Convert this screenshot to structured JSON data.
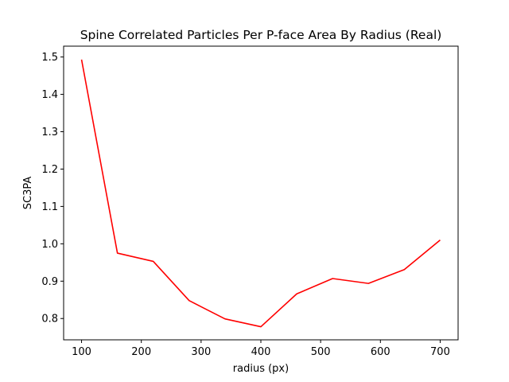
{
  "chart_data": {
    "type": "line",
    "title": "Spine Correlated Particles Per P-face Area By Radius (Real)",
    "xlabel": "radius (px)",
    "ylabel": "SC3PA",
    "xlim": [
      70,
      730
    ],
    "ylim": [
      0.743,
      1.529
    ],
    "xticks": [
      100,
      200,
      300,
      400,
      500,
      600,
      700
    ],
    "yticks": [
      0.8,
      0.9,
      1.0,
      1.1,
      1.2,
      1.3,
      1.4,
      1.5
    ],
    "xtick_labels": [
      "100",
      "200",
      "300",
      "400",
      "500",
      "600",
      "700"
    ],
    "ytick_labels": [
      "0.8",
      "0.9",
      "1.0",
      "1.1",
      "1.2",
      "1.3",
      "1.4",
      "1.5"
    ],
    "grid": false,
    "series": [
      {
        "color": "#ff0000",
        "x": [
          100,
          160,
          220,
          280,
          340,
          400,
          460,
          520,
          580,
          640,
          700
        ],
        "y": [
          1.493,
          0.975,
          0.953,
          0.848,
          0.799,
          0.778,
          0.866,
          0.907,
          0.894,
          0.931,
          1.01
        ]
      }
    ]
  }
}
